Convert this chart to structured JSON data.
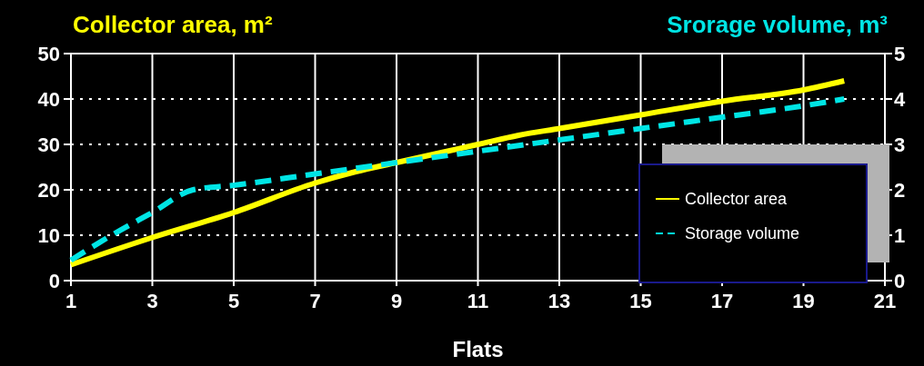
{
  "chart_data": {
    "type": "line",
    "xlabel": "Flats",
    "ylabel": "Collector area, m²",
    "y2label": "Srorage volume, m³",
    "xlim": [
      1,
      21
    ],
    "xticks": [
      1,
      3,
      5,
      7,
      9,
      11,
      13,
      15,
      17,
      19,
      21
    ],
    "ylim": [
      0,
      50
    ],
    "yticks": [
      0,
      10,
      20,
      30,
      40,
      50
    ],
    "y2lim": [
      0,
      5
    ],
    "y2ticks": [
      0,
      1,
      2,
      3,
      4,
      5
    ],
    "grid": true,
    "legend": "bottom right",
    "series": [
      {
        "name": "Collector area",
        "color": "#ffff00",
        "line_style": "solid",
        "x": [
          1,
          3,
          5,
          7,
          8,
          9,
          11,
          12,
          13,
          15,
          17,
          19,
          20
        ],
        "values": [
          3.5,
          9.5,
          15,
          21.5,
          24,
          26,
          30,
          32,
          33.5,
          36.5,
          39.5,
          42,
          44
        ]
      },
      {
        "name": "Storage volume",
        "color": "#00e5e5",
        "line_style": "dashed",
        "axis": "y2",
        "x": [
          1,
          2,
          3,
          4,
          5,
          7,
          9,
          11,
          13,
          15,
          17,
          19,
          20
        ],
        "values": [
          0.45,
          1.0,
          1.5,
          2.0,
          2.1,
          2.35,
          2.6,
          2.85,
          3.1,
          3.35,
          3.6,
          3.85,
          4.0
        ]
      }
    ]
  }
}
